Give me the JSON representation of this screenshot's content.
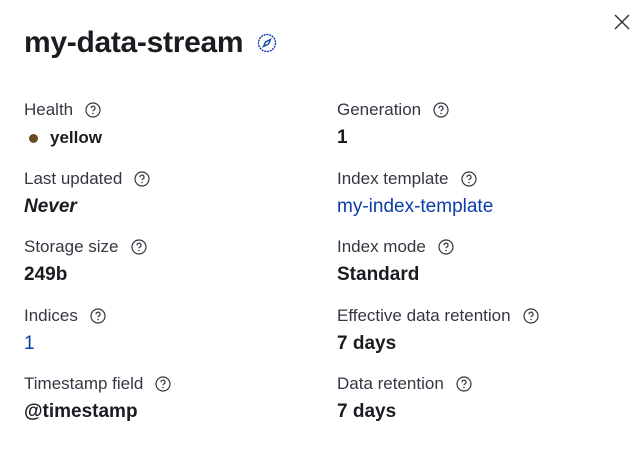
{
  "title": "my-data-stream",
  "accent": "#0b3ea8",
  "health_color": "#6b4a1e",
  "left": [
    {
      "label": "Health",
      "value": "yellow"
    },
    {
      "label": "Last updated",
      "value": "Never"
    },
    {
      "label": "Storage size",
      "value": "249b"
    },
    {
      "label": "Indices",
      "value": "1"
    },
    {
      "label": "Timestamp field",
      "value": "@timestamp"
    }
  ],
  "right": [
    {
      "label": "Generation",
      "value": "1"
    },
    {
      "label": "Index template",
      "value": "my-index-template"
    },
    {
      "label": "Index mode",
      "value": "Standard"
    },
    {
      "label": "Effective data retention",
      "value": "7 days"
    },
    {
      "label": "Data retention",
      "value": "7 days"
    }
  ]
}
